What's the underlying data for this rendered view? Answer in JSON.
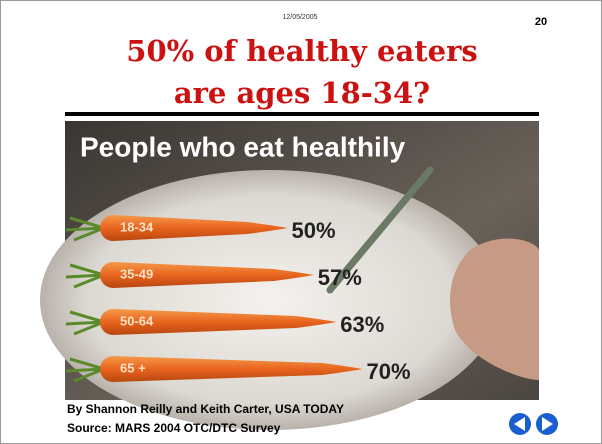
{
  "slide": {
    "date": "12/05/2005",
    "number": "20",
    "title": [
      "50% of healthy eaters",
      "are ages 18-34?"
    ]
  },
  "chart_data": {
    "type": "bar",
    "title": "People who eat healthily",
    "categories": [
      "18-34",
      "35-49",
      "50-64",
      "65 +"
    ],
    "values": [
      50,
      57,
      63,
      70
    ],
    "value_labels": [
      "50%",
      "57%",
      "63%",
      "70%"
    ],
    "color": "#e8641e"
  },
  "credits": {
    "byline": "By Shannon Reilly and Keith Carter, USA TODAY",
    "source": "Source: MARS 2004 OTC/DTC Survey"
  }
}
